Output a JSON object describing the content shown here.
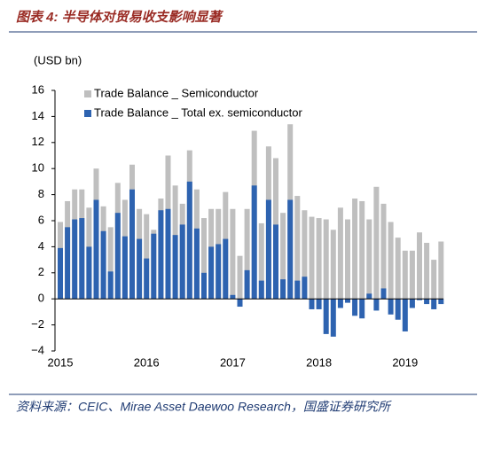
{
  "chart_data": {
    "type": "bar",
    "title": "图表 4:  半导体对贸易收支影响显著",
    "unit_label": "(USD bn)",
    "source": "资料来源：CEIC、Mirae Asset Daewoo Research，国盛证券研究所",
    "categories": [
      "2015",
      null,
      null,
      null,
      null,
      null,
      null,
      null,
      null,
      null,
      null,
      null,
      "2016",
      null,
      null,
      null,
      null,
      null,
      null,
      null,
      null,
      null,
      null,
      null,
      "2017",
      null,
      null,
      null,
      null,
      null,
      null,
      null,
      null,
      null,
      null,
      null,
      "2018",
      null,
      null,
      null,
      null,
      null,
      null,
      null,
      null,
      null,
      null,
      null,
      "2019",
      null,
      null,
      null,
      null,
      null
    ],
    "series": [
      {
        "name": "Trade Balance _ Semiconductor",
        "color": "#bfbfbf",
        "values": [
          5.9,
          7.5,
          8.4,
          8.4,
          7.0,
          10.0,
          7.1,
          5.5,
          8.9,
          7.6,
          10.3,
          6.9,
          6.5,
          5.3,
          7.7,
          11.0,
          8.7,
          7.3,
          11.4,
          8.4,
          6.2,
          6.9,
          6.9,
          8.2,
          6.9,
          3.3,
          6.9,
          12.9,
          5.8,
          11.7,
          10.8,
          6.6,
          13.4,
          7.9,
          6.8,
          6.3,
          6.2,
          6.1,
          5.3,
          7.0,
          6.1,
          7.7,
          7.5,
          6.1,
          8.6,
          7.3,
          5.9,
          4.7,
          3.7,
          3.7,
          5.1,
          4.3,
          3.0,
          4.4
        ]
      },
      {
        "name": "Trade Balance _ Total ex. semiconductor",
        "color": "#2e63b0",
        "values": [
          3.9,
          5.5,
          6.1,
          6.2,
          4.0,
          7.6,
          5.2,
          2.1,
          6.6,
          4.8,
          8.4,
          4.6,
          3.1,
          5.0,
          6.8,
          6.9,
          4.9,
          5.7,
          9.0,
          5.4,
          2.0,
          4.0,
          4.2,
          4.6,
          0.3,
          -0.6,
          2.2,
          8.7,
          1.4,
          7.6,
          5.7,
          1.5,
          7.6,
          1.4,
          1.7,
          -0.8,
          -0.8,
          -2.7,
          -2.9,
          -0.7,
          -0.3,
          -1.3,
          -1.5,
          0.4,
          -0.9,
          0.8,
          -1.2,
          -1.6,
          -2.5,
          -0.7,
          -0.1,
          -0.4,
          -0.8,
          -0.4
        ]
      }
    ],
    "ylim": [
      -4,
      16
    ],
    "yticks": [
      {
        "value": -4,
        "label": "−4"
      },
      {
        "value": -2,
        "label": "−2"
      },
      0,
      2,
      4,
      6,
      8,
      10,
      12,
      14,
      16
    ],
    "legend": "top-right"
  }
}
